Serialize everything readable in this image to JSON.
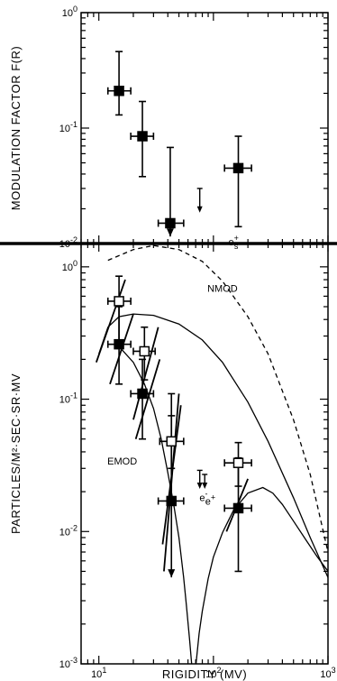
{
  "chart_data": [
    {
      "type": "scatter",
      "panel": "top",
      "xscale": "log",
      "yscale": "log",
      "xlim": [
        7,
        1000
      ],
      "ylim": [
        0.01,
        1
      ],
      "ylabel": "MODULATION FACTOR F(R)",
      "yticks": [
        {
          "value": 0.01,
          "label": "10",
          "exp": "-2"
        },
        {
          "value": 0.1,
          "label": "10",
          "exp": "-1"
        },
        {
          "value": 1,
          "label": "10",
          "exp": "0"
        }
      ],
      "points": [
        {
          "x": 15,
          "y": 0.21,
          "xerr": [
            12,
            19
          ],
          "ylo": 0.13,
          "yhi": 0.46
        },
        {
          "x": 24,
          "y": 0.085,
          "xerr": [
            19,
            30
          ],
          "ylo": 0.038,
          "yhi": 0.17
        },
        {
          "x": 42,
          "y": 0.015,
          "xerr": [
            33,
            55
          ],
          "ylo": 0.0115,
          "yhi": 0.068,
          "arrow_down": true
        },
        {
          "x": 165,
          "y": 0.045,
          "xerr": [
            125,
            215
          ],
          "ylo": 0.014,
          "yhi": 0.085
        }
      ],
      "upper_limits": [
        {
          "x": 76,
          "y": 0.03,
          "ylo": 0.0185
        }
      ]
    },
    {
      "type": "line",
      "panel": "bottom",
      "xscale": "log",
      "yscale": "log",
      "xlim": [
        7,
        1000
      ],
      "ylim": [
        0.001,
        1.5
      ],
      "xlabel": "RIGIDITY (MV)",
      "ylabel": "PARTICLES/M²·SEC·SR·MV",
      "xticks": [
        {
          "value": 10,
          "label": "10",
          "exp": "1"
        },
        {
          "value": 100,
          "label": "10",
          "exp": "2"
        },
        {
          "value": 1000,
          "label": "10",
          "exp": "3"
        }
      ],
      "yticks": [
        {
          "value": 0.001,
          "label": "10",
          "exp": "-3"
        },
        {
          "value": 0.01,
          "label": "10",
          "exp": "-2"
        },
        {
          "value": 0.1,
          "label": "10",
          "exp": "-1"
        },
        {
          "value": 1,
          "label": "10",
          "exp": "0"
        }
      ],
      "series": [
        {
          "style": "dashed",
          "x": [
            12,
            20,
            30,
            50,
            80,
            120,
            200,
            300,
            500,
            700,
            1000
          ],
          "y": [
            1.12,
            1.35,
            1.45,
            1.35,
            1.1,
            0.78,
            0.42,
            0.22,
            0.07,
            0.027,
            0.007
          ]
        },
        {
          "style": "solid",
          "x": [
            10,
            12,
            15,
            20,
            30,
            50,
            80,
            120,
            200,
            300,
            500,
            700,
            1000
          ],
          "y": [
            0.22,
            0.35,
            0.42,
            0.44,
            0.43,
            0.37,
            0.28,
            0.19,
            0.095,
            0.048,
            0.018,
            0.009,
            0.0045
          ]
        },
        {
          "style": "solid",
          "x": [
            15,
            20,
            25,
            30,
            35,
            40,
            45,
            50,
            55,
            58,
            62,
            66,
            70,
            75,
            80,
            90,
            100,
            120,
            150,
            200,
            270,
            330,
            400,
            500,
            650,
            800,
            1000
          ],
          "y": [
            0.25,
            0.19,
            0.13,
            0.085,
            0.05,
            0.028,
            0.016,
            0.009,
            0.0045,
            0.0028,
            0.0015,
            0.0008,
            0.00095,
            0.0017,
            0.0025,
            0.0044,
            0.0064,
            0.0098,
            0.0145,
            0.0195,
            0.0215,
            0.0195,
            0.016,
            0.012,
            0.0085,
            0.0065,
            0.005
          ]
        }
      ],
      "open_points": [
        {
          "x": 15,
          "y": 0.55,
          "xerr": [
            12,
            19
          ],
          "ylo": 0.25,
          "yhi": 0.85
        },
        {
          "x": 25,
          "y": 0.23,
          "xerr": [
            20,
            31
          ],
          "ylo": 0.14,
          "yhi": 0.35
        },
        {
          "x": 43,
          "y": 0.048,
          "xerr": [
            34,
            55
          ],
          "ylo": 0.03,
          "yhi": 0.075
        },
        {
          "x": 165,
          "y": 0.033,
          "xerr": [
            125,
            215
          ],
          "ylo": 0.022,
          "yhi": 0.047
        }
      ],
      "filled_points": [
        {
          "x": 15,
          "y": 0.26,
          "xerr": [
            12,
            19
          ],
          "ylo": 0.13,
          "yhi": 0.5
        },
        {
          "x": 24,
          "y": 0.11,
          "xerr": [
            19,
            30
          ],
          "ylo": 0.05,
          "yhi": 0.2
        },
        {
          "x": 43,
          "y": 0.017,
          "xerr": [
            33,
            55
          ],
          "ylo": 0.0045,
          "yhi": 0.11,
          "arrow_down": true
        },
        {
          "x": 165,
          "y": 0.015,
          "xerr": [
            125,
            215
          ],
          "ylo": 0.005,
          "yhi": 0.036
        }
      ],
      "slopes": [
        {
          "x": [
            9.5,
            17
          ],
          "y": [
            0.19,
            0.8
          ]
        },
        {
          "x": [
            12.5,
            20
          ],
          "y": [
            0.13,
            0.44
          ]
        },
        {
          "x": [
            20,
            33
          ],
          "y": [
            0.07,
            0.35
          ]
        },
        {
          "x": [
            21,
            34
          ],
          "y": [
            0.05,
            0.2
          ]
        },
        {
          "x": [
            37,
            50
          ],
          "y": [
            0.005,
            0.11
          ]
        },
        {
          "x": [
            36,
            52
          ],
          "y": [
            0.008,
            0.09
          ]
        },
        {
          "x": [
            130,
            200
          ],
          "y": [
            0.01,
            0.025
          ]
        }
      ],
      "upper_limits": [
        {
          "x": 76,
          "y": 0.029,
          "ylo": 0.021
        },
        {
          "x": 84,
          "y": 0.027,
          "ylo": 0.021
        }
      ],
      "annotations": [
        {
          "text": "e",
          "sup": "+",
          "sub": "s",
          "x": 150,
          "y": 1.45
        },
        {
          "text": "NMOD",
          "x": 120,
          "y": 0.65
        },
        {
          "text": "EMOD",
          "x": 16,
          "y": 0.032
        },
        {
          "text": "e",
          "sup": "-",
          "x": 82,
          "y": 0.017
        },
        {
          "text": "e",
          "sup": "+",
          "x": 94,
          "y": 0.016
        }
      ]
    }
  ]
}
